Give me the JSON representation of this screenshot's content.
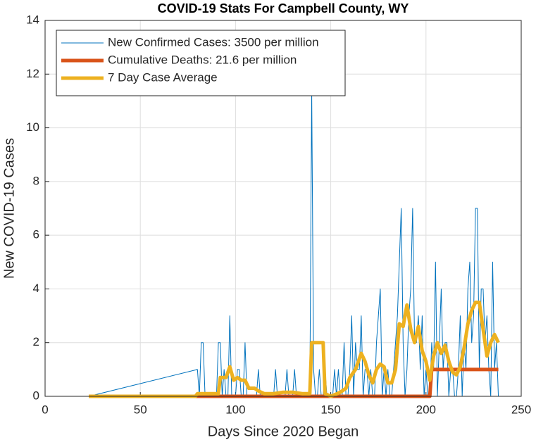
{
  "chart_data": {
    "type": "line",
    "title": "COVID-19 Stats For Campbell County, WY",
    "xlabel": "Days Since 2020 Began",
    "ylabel": "New COVID-19 Cases",
    "xlim": [
      0,
      250
    ],
    "xticks": [
      0,
      50,
      100,
      150,
      200,
      250
    ],
    "ylim": [
      0,
      14
    ],
    "yticks": [
      0,
      2,
      4,
      6,
      8,
      10,
      12,
      14
    ],
    "grid": true,
    "legend": "northwest",
    "series": [
      {
        "name": "New Confirmed Cases: 3500 per million",
        "color": "#0072BD",
        "x": [
          23,
          80,
          81,
          82,
          83,
          84,
          85,
          86,
          87,
          88,
          89,
          90,
          91,
          92,
          93,
          94,
          95,
          96,
          97,
          98,
          99,
          100,
          101,
          102,
          103,
          104,
          105,
          106,
          107,
          108,
          109,
          110,
          111,
          112,
          113,
          114,
          115,
          116,
          117,
          118,
          119,
          120,
          121,
          122,
          123,
          124,
          125,
          126,
          127,
          128,
          129,
          130,
          131,
          132,
          133,
          134,
          135,
          136,
          137,
          138,
          139,
          140,
          141,
          142,
          143,
          144,
          145,
          146,
          147,
          148,
          149,
          150,
          151,
          152,
          153,
          154,
          155,
          156,
          157,
          158,
          159,
          160,
          161,
          162,
          163,
          164,
          165,
          166,
          167,
          168,
          169,
          170,
          171,
          172,
          173,
          174,
          175,
          176,
          177,
          178,
          179,
          180,
          181,
          182,
          183,
          184,
          185,
          186,
          187,
          188,
          189,
          190,
          191,
          192,
          193,
          194,
          195,
          196,
          197,
          198,
          199,
          200,
          201,
          202,
          203,
          204,
          205,
          206,
          207,
          208,
          209,
          210,
          211,
          212,
          213,
          214,
          215,
          216,
          217,
          218,
          219,
          220,
          221,
          222,
          223,
          224,
          225,
          226,
          227,
          228,
          229,
          230,
          231,
          232,
          233,
          234,
          235,
          236,
          237,
          238
        ],
        "values": [
          0,
          1,
          0,
          2,
          2,
          0,
          0,
          0,
          0,
          0,
          0,
          0,
          2,
          2,
          0,
          1,
          0,
          0,
          3,
          0,
          0,
          0,
          1,
          1,
          0,
          0,
          2,
          0,
          0,
          0,
          0,
          0,
          0,
          1,
          0,
          0,
          0,
          0,
          0,
          0,
          0,
          0,
          1,
          0,
          0,
          0,
          0,
          0,
          1,
          0,
          0,
          0,
          1,
          0,
          0,
          0,
          0,
          0,
          0,
          0,
          0,
          11.4,
          1,
          0,
          0,
          1,
          0,
          0,
          1,
          0,
          0,
          0,
          0,
          1,
          0,
          1,
          0,
          0,
          2,
          0,
          0,
          1,
          3,
          0,
          2,
          1,
          1,
          3,
          0,
          1,
          1,
          0,
          1,
          0,
          0,
          2,
          3,
          4,
          0,
          1,
          0,
          1,
          0,
          0,
          1,
          2,
          3,
          5,
          7,
          2,
          0,
          1,
          3,
          4,
          7,
          2,
          2,
          3,
          1,
          3,
          0,
          1,
          0,
          0,
          2,
          1,
          5,
          0,
          2,
          4,
          1,
          2,
          2,
          0,
          1,
          1,
          0,
          0,
          1,
          3,
          0,
          2,
          1,
          4,
          5,
          2,
          3,
          7,
          7,
          1,
          4,
          4,
          2,
          3,
          1,
          0,
          5,
          1,
          2,
          0
        ]
      },
      {
        "name": "Cumulative Deaths: 21.6 per million",
        "color": "#D95319",
        "x": [
          23,
          202,
          203,
          238
        ],
        "values": [
          0,
          0,
          1,
          1
        ]
      },
      {
        "name": "7 Day Case Average",
        "color": "#EDB120",
        "x": [
          23,
          79,
          80,
          91,
          92,
          95,
          97,
          99,
          101,
          103,
          105,
          107,
          110,
          112,
          115,
          120,
          125,
          130,
          135,
          139,
          140,
          146,
          147,
          150,
          155,
          158,
          160,
          163,
          166,
          168,
          170,
          172,
          174,
          176,
          178,
          180,
          182,
          184,
          186,
          188,
          190,
          192,
          194,
          196,
          198,
          200,
          202,
          204,
          206,
          208,
          210,
          212,
          214,
          216,
          218,
          220,
          222,
          224,
          226,
          228,
          230,
          232,
          234,
          236,
          238
        ],
        "values": [
          0,
          0,
          0.1,
          0.1,
          0.7,
          0.7,
          1.1,
          0.6,
          0.7,
          0.6,
          0.6,
          0.3,
          0.3,
          0.2,
          0.1,
          0.1,
          0.15,
          0.15,
          0.1,
          0.1,
          2,
          2,
          0.1,
          0,
          0.15,
          0.3,
          0.7,
          1,
          1.6,
          1.3,
          0.8,
          0.5,
          1,
          1.2,
          1.1,
          0.5,
          0.5,
          1,
          2.7,
          2.6,
          3.4,
          2.5,
          2,
          2.6,
          1.7,
          1.3,
          0.6,
          1.5,
          2,
          1.6,
          1.9,
          1.3,
          0.9,
          0.8,
          1.1,
          1.8,
          2.7,
          3.2,
          3.5,
          3.5,
          2.5,
          1.5,
          2,
          2.3,
          2
        ]
      }
    ]
  }
}
